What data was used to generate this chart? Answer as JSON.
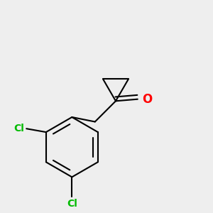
{
  "background_color": "#eeeeee",
  "bond_color": "#000000",
  "cl_color": "#00bb00",
  "o_color": "#ff0000",
  "line_width": 1.5,
  "figsize": [
    3.0,
    3.0
  ],
  "dpi": 100,
  "xlim": [
    0.1,
    0.9
  ],
  "ylim": [
    0.05,
    0.95
  ]
}
